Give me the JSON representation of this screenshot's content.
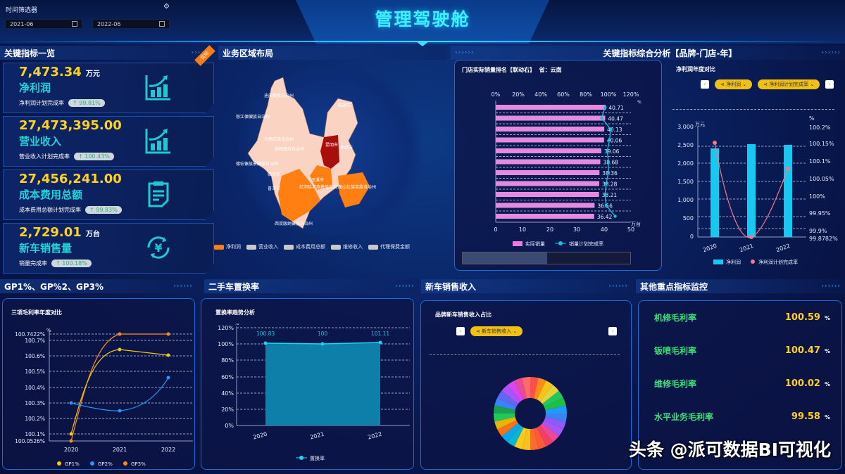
{
  "header": {
    "title": "管理驾驶舱",
    "filter_label": "时间筛选器",
    "date_start": "2021-06",
    "date_end": "2022-06"
  },
  "sections": {
    "kpi": "关键指标一览",
    "map": "业务区域布局",
    "analysis": "关键指标综合分析【品牌-门店-年】",
    "gp": "GP1%、GP%2、GP3%",
    "used_car": "二手车置换率",
    "new_car": "新车销售收入",
    "monitor": "其他重点指标监控"
  },
  "kpis": [
    {
      "value": "7,473.34",
      "unit": "万元",
      "name": "净利润",
      "sub_label": "净利润计划完成率",
      "rate": "↑ 99.81%",
      "icon": "bar-chart-up-icon"
    },
    {
      "value": "27,473,395.00",
      "unit": "",
      "name": "营业收入",
      "sub_label": "营业收入计划完成率",
      "rate": "↑ 100.43%",
      "icon": "bar-chart-up-icon"
    },
    {
      "value": "27,456,241.00",
      "unit": "",
      "name": "成本费用总额",
      "sub_label": "成本费用总额计划完成率",
      "rate": "↑ 99.83%",
      "icon": "clipboard-icon"
    },
    {
      "value": "2,729.01",
      "unit": "万台",
      "name": "新车销售量",
      "sub_label": "销量完成率",
      "rate": "↑ 100.18%",
      "icon": "yen-cycle-icon"
    }
  ],
  "ribbon": "实际",
  "map": {
    "legend": [
      {
        "label": "净利润",
        "color": "#ff7f12"
      },
      {
        "label": "营业收入",
        "color": "#c9c9c9"
      },
      {
        "label": "成本费用总额",
        "color": "#c9c9c9"
      },
      {
        "label": "维修收入",
        "color": "#c9c9c9"
      },
      {
        "label": "代理保费金额",
        "color": "#c9c9c9"
      }
    ],
    "labels": [
      "迪庆藏族自治州",
      "怒江傈僳族自治州",
      "丽江市",
      "大理白族自治州",
      "楚雄彝族自治州",
      "保山市",
      "德宏傣族景颇族自治州",
      "临沧市",
      "昆明市",
      "曲靖市",
      "昭通市",
      "玉溪市",
      "普洱市",
      "红河哈尼族彝族自治州",
      "文山壮族苗族自治州",
      "西双版纳傣族自治州"
    ]
  },
  "store_rank": {
    "title": "门店实际销量排名【联动右】",
    "province": "省：云南",
    "legend": [
      "实际销量",
      "销量计划完成率"
    ],
    "unit_bottom": "万台",
    "unit_top": "%"
  },
  "profit_compare": {
    "title": "净利润年度对比",
    "btn1": "净利润",
    "btn2": "净利润计划完成率",
    "legend": [
      "净利润",
      "净利润计划完成率"
    ]
  },
  "gp_chart": {
    "title": "三项毛利率年度对比",
    "legend": [
      "GP1%",
      "GP2%",
      "GP3%"
    ]
  },
  "used_chart": {
    "title": "置换率趋势分析",
    "legend": [
      "置换率"
    ]
  },
  "newcar_chart": {
    "title": "品牌新车销售收入占比",
    "btn": "新车销售收入"
  },
  "monitor": [
    {
      "label": "机修毛利率",
      "value": "100.59",
      "unit": "%"
    },
    {
      "label": "钣喷毛利率",
      "value": "100.47",
      "unit": "%"
    },
    {
      "label": "维修毛利率",
      "value": "100.02",
      "unit": "%"
    },
    {
      "label": "水平业务毛利率",
      "value": "99.58",
      "unit": "%"
    }
  ],
  "watermark": "头条 @派可数据BI可视化",
  "chart_data": [
    {
      "type": "bar",
      "title": "门店实际销量排名【联动右】",
      "xlabel": "万台",
      "x_ticks": [
        0,
        10,
        20,
        30,
        40,
        50
      ],
      "x2_ticks": [
        "0%",
        "20%",
        "40%",
        "60%",
        "80%",
        "100%",
        "120%"
      ],
      "series": [
        {
          "name": "实际销量",
          "values": [
            40.71,
            40.47,
            40.13,
            40.06,
            39.06,
            38.68,
            38.36,
            38.28,
            38.21,
            36.56,
            36.42
          ]
        },
        {
          "name": "销量计划完成率",
          "values": [
            97,
            94,
            102,
            101,
            99,
            100,
            100,
            98,
            97,
            98,
            106
          ]
        }
      ]
    },
    {
      "type": "bar",
      "title": "净利润年度对比",
      "categories": [
        "2020",
        "2021",
        "2022"
      ],
      "ylabel": "万元",
      "ylim": [
        0,
        3000
      ],
      "y_ticks": [
        "0",
        "500",
        "1,000",
        "1,500",
        "2,000",
        "2,500",
        "3,000"
      ],
      "y2_ticks": [
        "99.8782%",
        "99.9%",
        "99.95%",
        "100%",
        "100.05%",
        "100.1%",
        "100.15%",
        "100.2%"
      ],
      "series": [
        {
          "name": "净利润",
          "values": [
            2420,
            2520,
            2500
          ]
        },
        {
          "name": "净利润计划完成率",
          "values": [
            100.15,
            99.8782,
            100.09
          ]
        }
      ]
    },
    {
      "type": "line",
      "title": "三项毛利率年度对比",
      "categories": [
        "2020",
        "2021",
        "2022"
      ],
      "ylabel": "%",
      "ylim": [
        100.0526,
        100.7422
      ],
      "y_ticks": [
        "100.0526%",
        "100.1%",
        "100.2%",
        "100.3%",
        "100.4%",
        "100.5%",
        "100.6%",
        "100.7%",
        "100.7422%"
      ],
      "series": [
        {
          "name": "GP1%",
          "values": [
            100.1,
            100.65,
            100.61
          ]
        },
        {
          "name": "GP2%",
          "values": [
            100.3,
            100.25,
            100.47
          ]
        },
        {
          "name": "GP3%",
          "values": [
            100.0526,
            100.7422,
            100.7422
          ]
        }
      ]
    },
    {
      "type": "area",
      "title": "置换率趋势分析",
      "categories": [
        "2020",
        "2021",
        "2022"
      ],
      "ylabel": "%",
      "ylim": [
        0,
        120
      ],
      "y_ticks": [
        "0%",
        "20%",
        "40%",
        "60%",
        "80%",
        "100%",
        "120%"
      ],
      "series": [
        {
          "name": "置换率",
          "values": [
            100.83,
            100,
            101.11
          ]
        }
      ]
    },
    {
      "type": "pie",
      "title": "品牌新车销售收入占比",
      "note": "donut with ~24 brand slices, labels blurred"
    }
  ]
}
